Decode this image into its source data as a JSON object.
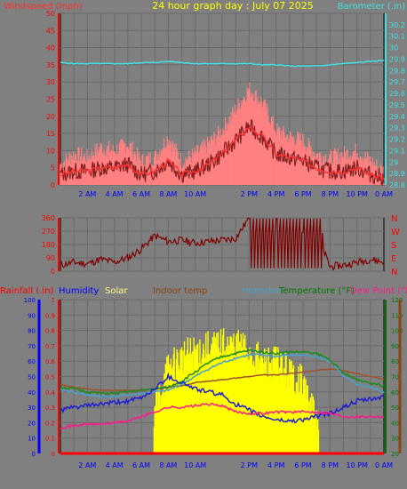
{
  "title": "24 hour graph day : July 07 2025",
  "colors": {
    "background": "#808080",
    "plot": "#808080",
    "grid": "#6a6a6a",
    "wind_avg": "#ff3030",
    "wind_gust": "#ff8080",
    "wind_dark": "#802020",
    "barometer": "#40e0e0",
    "direction": "#800000",
    "rain": "#ff0000",
    "humidity": "#2020d0",
    "solar": "#ffff00",
    "indoor": "#a0522d",
    "humidex": "#4aa0c8",
    "temperature": "#1e8c1e",
    "dewpoint": "#ff1a8c",
    "axis_red": "#ff0000",
    "axis_blue": "#0000ff",
    "axis_green": "#007800",
    "axis_brown": "#8b4513"
  },
  "x_ticks": [
    "2 AM",
    "4 AM",
    "6 AM",
    "8 AM",
    "10 AM",
    "2 PM",
    "4 PM",
    "6 PM",
    "8 PM",
    "10 PM",
    "0 AM"
  ],
  "chart_data": [
    {
      "type": "line",
      "title": "24 hour graph day : July 07 2025",
      "ylabel_left": "Windspeed (mph)",
      "ylabel_right": "Barometer (.in)",
      "ylim": [
        0,
        50
      ],
      "ylim_right": [
        28.8,
        30.3
      ],
      "y_ticks_left": [
        "0",
        "5",
        "10",
        "15",
        "20",
        "25",
        "30",
        "35",
        "40",
        "45",
        "50"
      ],
      "y_ticks_right": [
        "28.8",
        "28.9",
        "29",
        "29.1",
        "29.2",
        "29.3",
        "29.4",
        "29.5",
        "29.6",
        "29.7",
        "29.8",
        "29.9",
        "30",
        "30.1",
        "30.2"
      ],
      "x_hours": [
        0,
        1,
        2,
        3,
        4,
        5,
        6,
        7,
        8,
        9,
        10,
        11,
        12,
        13,
        14,
        15,
        16,
        17,
        18,
        19,
        20,
        21,
        22,
        23,
        24
      ],
      "series": [
        {
          "name": "Windspeed gust",
          "values": [
            6,
            9,
            8,
            11,
            10,
            12,
            7,
            8,
            14,
            7,
            9,
            12,
            16,
            22,
            28,
            24,
            16,
            14,
            13,
            9,
            8,
            9,
            10,
            7,
            4
          ]
        },
        {
          "name": "Windspeed avg",
          "values": [
            3,
            4,
            4,
            5,
            5,
            6,
            3,
            4,
            7,
            3,
            4,
            6,
            9,
            13,
            17,
            14,
            9,
            8,
            7,
            5,
            4,
            4,
            5,
            3,
            2
          ]
        },
        {
          "name": "Barometer",
          "values": [
            29.87,
            29.86,
            29.86,
            29.86,
            29.86,
            29.86,
            29.87,
            29.87,
            29.88,
            29.87,
            29.86,
            29.86,
            29.86,
            29.86,
            29.86,
            29.85,
            29.85,
            29.84,
            29.84,
            29.84,
            29.85,
            29.86,
            29.87,
            29.88,
            29.89
          ]
        }
      ]
    },
    {
      "type": "line",
      "title": "",
      "ylabel_left": "",
      "ylim": [
        0,
        360
      ],
      "y_ticks_left": [
        "0",
        "90",
        "180",
        "270",
        "360"
      ],
      "y_ticks_right": [
        "N",
        "E",
        "S",
        "W",
        "N"
      ],
      "x_hours": [
        0,
        1,
        2,
        3,
        4,
        5,
        6,
        7,
        8,
        9,
        10,
        11,
        12,
        13,
        14,
        15,
        16,
        17,
        18,
        19,
        20,
        21,
        22,
        23,
        24
      ],
      "series": [
        {
          "name": "Wind direction",
          "values": [
            40,
            60,
            50,
            80,
            60,
            90,
            150,
            240,
            200,
            210,
            190,
            200,
            210,
            220,
            360,
            180,
            300,
            260,
            320,
            260,
            30,
            40,
            60,
            80,
            60
          ]
        }
      ]
    },
    {
      "type": "line",
      "ylabels_top": [
        "Rainfall (.in)",
        "Humidity",
        "Solar",
        "Indoor temp",
        "Humidex",
        "Temperature (°F)",
        "Dew Point (°F)"
      ],
      "ylim": [
        0,
        100
      ],
      "ylim_rain": [
        0,
        1
      ],
      "ylim_temp": [
        20,
        120
      ],
      "y_ticks_humidity": [
        "0",
        "10",
        "20",
        "30",
        "40",
        "50",
        "60",
        "70",
        "80",
        "90",
        "100"
      ],
      "y_ticks_rain": [
        "0",
        "0.1",
        "0.2",
        "0.3",
        "0.4",
        "0.5",
        "0.6",
        "0.7",
        "0.8",
        "0.9",
        "1"
      ],
      "y_ticks_temp": [
        "20",
        "30",
        "40",
        "50",
        "60",
        "70",
        "80",
        "90",
        "100",
        "110",
        "120"
      ],
      "x_hours": [
        0,
        1,
        2,
        3,
        4,
        5,
        6,
        7,
        8,
        9,
        10,
        11,
        12,
        13,
        14,
        15,
        16,
        17,
        18,
        19,
        20,
        21,
        22,
        23,
        24
      ],
      "series": [
        {
          "name": "Rainfall",
          "values": [
            0,
            0,
            0,
            0,
            0,
            0,
            0,
            0,
            0,
            0,
            0,
            0,
            0,
            0,
            0,
            0,
            0,
            0,
            0,
            0,
            0,
            0,
            0,
            0,
            0
          ]
        },
        {
          "name": "Humidity",
          "values": [
            28,
            30,
            31,
            32,
            33,
            34,
            36,
            42,
            50,
            46,
            42,
            40,
            38,
            32,
            28,
            24,
            22,
            21,
            22,
            24,
            26,
            30,
            34,
            35,
            37
          ]
        },
        {
          "name": "Solar",
          "values": [
            0,
            0,
            0,
            0,
            0,
            0,
            0,
            30,
            55,
            62,
            66,
            68,
            70,
            70,
            66,
            58,
            60,
            52,
            46,
            20,
            0,
            0,
            0,
            0,
            0
          ]
        },
        {
          "name": "Indoor temp",
          "values": [
            65,
            63,
            62,
            61,
            61,
            61,
            61,
            62,
            63,
            64,
            66,
            67,
            68,
            69,
            70,
            71,
            71,
            72,
            73,
            74,
            75,
            74,
            72,
            70,
            68
          ]
        },
        {
          "name": "Humidex",
          "values": [
            61,
            60,
            58,
            57,
            57,
            58,
            59,
            60,
            61,
            65,
            70,
            75,
            79,
            82,
            84,
            84,
            83,
            84,
            84,
            83,
            80,
            70,
            65,
            63,
            60
          ]
        },
        {
          "name": "Temperature",
          "values": [
            63,
            62,
            60,
            59,
            59,
            60,
            61,
            62,
            63,
            67,
            73,
            79,
            83,
            85,
            87,
            86,
            85,
            86,
            86,
            85,
            81,
            72,
            68,
            66,
            64
          ]
        },
        {
          "name": "Dew Point",
          "values": [
            37,
            38,
            39,
            39,
            40,
            41,
            44,
            47,
            50,
            50,
            51,
            52,
            51,
            47,
            46,
            46,
            47,
            47,
            47,
            47,
            46,
            44,
            44,
            44,
            44
          ]
        }
      ]
    }
  ]
}
